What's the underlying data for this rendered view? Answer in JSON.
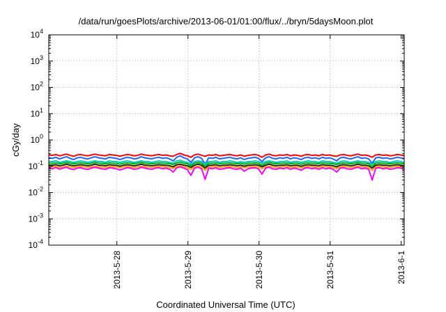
{
  "chart_data": {
    "type": "line",
    "title": "/data/run/goesPlots/archive/2013-06-01/01:00/flux/../bryn/5daysMoon.plot",
    "xlabel": "Coordinated Universal Time (UTC)",
    "ylabel": "cGy/day",
    "y_scale": "log",
    "ylim": [
      0.0001,
      10000
    ],
    "y_ticks": [
      {
        "base": "10",
        "exp": "-4",
        "value": 0.0001
      },
      {
        "base": "10",
        "exp": "-3",
        "value": 0.001
      },
      {
        "base": "10",
        "exp": "-2",
        "value": 0.01
      },
      {
        "base": "10",
        "exp": "-1",
        "value": 0.1
      },
      {
        "base": "10",
        "exp": "0",
        "value": 1
      },
      {
        "base": "10",
        "exp": "1",
        "value": 10
      },
      {
        "base": "10",
        "exp": "2",
        "value": 100
      },
      {
        "base": "10",
        "exp": "3",
        "value": 1000
      },
      {
        "base": "10",
        "exp": "4",
        "value": 10000
      }
    ],
    "xlim": [
      "2013-05-27 01:00",
      "2013-06-01 01:00"
    ],
    "x_ticks": [
      "2013-5-28",
      "2013-5-29",
      "2013-5-30",
      "2013-5-31",
      "2013-6-1"
    ],
    "grid": true,
    "legend": "none",
    "series": [
      {
        "color": "#ff0000",
        "values": [
          0.27,
          0.26,
          0.28,
          0.25,
          0.27,
          0.29,
          0.26,
          0.24,
          0.27,
          0.28,
          0.26,
          0.25,
          0.27,
          0.29,
          0.27,
          0.26,
          0.25,
          0.28,
          0.27,
          0.26,
          0.24,
          0.26,
          0.28,
          0.27,
          0.25,
          0.26,
          0.29,
          0.27,
          0.26,
          0.25,
          0.27,
          0.28,
          0.26,
          0.27,
          0.25,
          0.24,
          0.28,
          0.31,
          0.27,
          0.25,
          0.22,
          0.27,
          0.29,
          0.26,
          0.24,
          0.27,
          0.26,
          0.28,
          0.25,
          0.26,
          0.27,
          0.28,
          0.26,
          0.25,
          0.27,
          0.24,
          0.26,
          0.27,
          0.28,
          0.26,
          0.22,
          0.27,
          0.29,
          0.26,
          0.25,
          0.27,
          0.26,
          0.28,
          0.25,
          0.27,
          0.26,
          0.24,
          0.27,
          0.28,
          0.26,
          0.27,
          0.25,
          0.28,
          0.26,
          0.27,
          0.25,
          0.24,
          0.27,
          0.28,
          0.26,
          0.25,
          0.27,
          0.29,
          0.26,
          0.27,
          0.25,
          0.22,
          0.27,
          0.28,
          0.26,
          0.27,
          0.25,
          0.26,
          0.28,
          0.27,
          0.25
        ]
      },
      {
        "color": "#1e64ff",
        "values": [
          0.21,
          0.2,
          0.22,
          0.19,
          0.21,
          0.23,
          0.2,
          0.18,
          0.21,
          0.22,
          0.2,
          0.19,
          0.21,
          0.23,
          0.21,
          0.2,
          0.19,
          0.22,
          0.21,
          0.2,
          0.18,
          0.2,
          0.22,
          0.21,
          0.19,
          0.2,
          0.23,
          0.21,
          0.2,
          0.19,
          0.21,
          0.22,
          0.2,
          0.21,
          0.19,
          0.16,
          0.22,
          0.25,
          0.21,
          0.19,
          0.14,
          0.21,
          0.23,
          0.2,
          0.12,
          0.21,
          0.2,
          0.22,
          0.19,
          0.2,
          0.21,
          0.22,
          0.2,
          0.19,
          0.21,
          0.18,
          0.2,
          0.21,
          0.22,
          0.2,
          0.15,
          0.21,
          0.23,
          0.2,
          0.19,
          0.21,
          0.2,
          0.22,
          0.19,
          0.21,
          0.2,
          0.18,
          0.21,
          0.22,
          0.2,
          0.21,
          0.19,
          0.22,
          0.2,
          0.21,
          0.19,
          0.16,
          0.21,
          0.22,
          0.2,
          0.19,
          0.21,
          0.23,
          0.2,
          0.21,
          0.19,
          0.13,
          0.21,
          0.22,
          0.2,
          0.21,
          0.19,
          0.2,
          0.22,
          0.21,
          0.19
        ]
      },
      {
        "color": "#00c8c8",
        "values": [
          0.15,
          0.15,
          0.16,
          0.14,
          0.15,
          0.16,
          0.15,
          0.14,
          0.15,
          0.16,
          0.15,
          0.14,
          0.15,
          0.16,
          0.15,
          0.15,
          0.14,
          0.16,
          0.15,
          0.15,
          0.14,
          0.15,
          0.16,
          0.15,
          0.14,
          0.15,
          0.16,
          0.15,
          0.15,
          0.14,
          0.15,
          0.16,
          0.15,
          0.15,
          0.14,
          0.13,
          0.16,
          0.17,
          0.15,
          0.14,
          0.12,
          0.15,
          0.16,
          0.15,
          0.12,
          0.15,
          0.15,
          0.16,
          0.14,
          0.15,
          0.15,
          0.16,
          0.15,
          0.14,
          0.15,
          0.14,
          0.15,
          0.15,
          0.16,
          0.15,
          0.13,
          0.15,
          0.16,
          0.15,
          0.14,
          0.15,
          0.15,
          0.16,
          0.14,
          0.15,
          0.15,
          0.14,
          0.15,
          0.16,
          0.15,
          0.15,
          0.14,
          0.16,
          0.15,
          0.15,
          0.14,
          0.13,
          0.15,
          0.16,
          0.15,
          0.14,
          0.15,
          0.16,
          0.15,
          0.15,
          0.14,
          0.12,
          0.15,
          0.16,
          0.15,
          0.15,
          0.14,
          0.15,
          0.16,
          0.15,
          0.14
        ]
      },
      {
        "color": "#00b400",
        "values": [
          0.13,
          0.13,
          0.135,
          0.125,
          0.13,
          0.14,
          0.13,
          0.125,
          0.13,
          0.135,
          0.13,
          0.125,
          0.13,
          0.14,
          0.13,
          0.13,
          0.125,
          0.135,
          0.13,
          0.13,
          0.12,
          0.13,
          0.135,
          0.13,
          0.125,
          0.13,
          0.14,
          0.13,
          0.13,
          0.125,
          0.13,
          0.135,
          0.13,
          0.13,
          0.125,
          0.115,
          0.135,
          0.145,
          0.13,
          0.125,
          0.105,
          0.13,
          0.14,
          0.13,
          0.1,
          0.13,
          0.13,
          0.135,
          0.125,
          0.13,
          0.13,
          0.135,
          0.13,
          0.125,
          0.13,
          0.12,
          0.13,
          0.13,
          0.135,
          0.13,
          0.11,
          0.13,
          0.14,
          0.13,
          0.125,
          0.13,
          0.13,
          0.135,
          0.125,
          0.13,
          0.13,
          0.12,
          0.13,
          0.135,
          0.13,
          0.13,
          0.125,
          0.135,
          0.13,
          0.13,
          0.125,
          0.115,
          0.13,
          0.135,
          0.13,
          0.125,
          0.13,
          0.14,
          0.13,
          0.13,
          0.125,
          0.1,
          0.13,
          0.135,
          0.13,
          0.13,
          0.125,
          0.13,
          0.135,
          0.13,
          0.125
        ]
      },
      {
        "color": "#222222",
        "values": [
          0.11,
          0.11,
          0.115,
          0.105,
          0.11,
          0.12,
          0.11,
          0.105,
          0.11,
          0.115,
          0.11,
          0.105,
          0.11,
          0.12,
          0.11,
          0.11,
          0.105,
          0.115,
          0.11,
          0.11,
          0.1,
          0.11,
          0.115,
          0.11,
          0.105,
          0.11,
          0.12,
          0.11,
          0.11,
          0.105,
          0.11,
          0.115,
          0.11,
          0.11,
          0.105,
          0.095,
          0.115,
          0.12,
          0.11,
          0.105,
          0.09,
          0.11,
          0.12,
          0.11,
          0.085,
          0.11,
          0.11,
          0.115,
          0.105,
          0.11,
          0.11,
          0.115,
          0.11,
          0.105,
          0.11,
          0.1,
          0.11,
          0.11,
          0.115,
          0.11,
          0.095,
          0.11,
          0.12,
          0.11,
          0.105,
          0.11,
          0.11,
          0.115,
          0.105,
          0.11,
          0.11,
          0.1,
          0.11,
          0.115,
          0.11,
          0.11,
          0.105,
          0.115,
          0.11,
          0.11,
          0.105,
          0.095,
          0.11,
          0.115,
          0.11,
          0.105,
          0.11,
          0.12,
          0.11,
          0.11,
          0.105,
          0.085,
          0.11,
          0.115,
          0.11,
          0.11,
          0.105,
          0.11,
          0.115,
          0.11,
          0.105
        ]
      },
      {
        "color": "#ffa500",
        "values": [
          0.095,
          0.095,
          0.1,
          0.09,
          0.095,
          0.1,
          0.095,
          0.09,
          0.095,
          0.1,
          0.095,
          0.09,
          0.095,
          0.1,
          0.095,
          0.095,
          0.09,
          0.1,
          0.095,
          0.095,
          0.088,
          0.095,
          0.1,
          0.095,
          0.09,
          0.095,
          0.1,
          0.095,
          0.095,
          0.09,
          0.095,
          0.1,
          0.095,
          0.095,
          0.09,
          0.082,
          0.1,
          0.105,
          0.095,
          0.09,
          0.075,
          0.095,
          0.1,
          0.095,
          0.07,
          0.095,
          0.095,
          0.1,
          0.09,
          0.095,
          0.095,
          0.1,
          0.095,
          0.09,
          0.095,
          0.088,
          0.095,
          0.095,
          0.1,
          0.095,
          0.08,
          0.095,
          0.1,
          0.095,
          0.09,
          0.095,
          0.095,
          0.1,
          0.09,
          0.095,
          0.095,
          0.088,
          0.095,
          0.1,
          0.095,
          0.095,
          0.09,
          0.1,
          0.095,
          0.095,
          0.09,
          0.082,
          0.095,
          0.1,
          0.095,
          0.09,
          0.095,
          0.1,
          0.095,
          0.095,
          0.09,
          0.07,
          0.095,
          0.1,
          0.095,
          0.095,
          0.09,
          0.095,
          0.1,
          0.095,
          0.09
        ]
      },
      {
        "color": "#ff00ff",
        "values": [
          0.085,
          0.08,
          0.09,
          0.078,
          0.085,
          0.092,
          0.08,
          0.075,
          0.085,
          0.088,
          0.08,
          0.076,
          0.085,
          0.092,
          0.085,
          0.08,
          0.077,
          0.088,
          0.085,
          0.08,
          0.072,
          0.08,
          0.088,
          0.085,
          0.077,
          0.08,
          0.092,
          0.085,
          0.08,
          0.077,
          0.085,
          0.088,
          0.08,
          0.085,
          0.077,
          0.06,
          0.088,
          0.095,
          0.085,
          0.075,
          0.045,
          0.085,
          0.092,
          0.08,
          0.032,
          0.085,
          0.08,
          0.088,
          0.077,
          0.08,
          0.085,
          0.088,
          0.08,
          0.077,
          0.085,
          0.065,
          0.08,
          0.085,
          0.088,
          0.08,
          0.05,
          0.085,
          0.092,
          0.08,
          0.077,
          0.085,
          0.08,
          0.088,
          0.077,
          0.085,
          0.08,
          0.07,
          0.085,
          0.088,
          0.08,
          0.085,
          0.077,
          0.088,
          0.08,
          0.085,
          0.077,
          0.06,
          0.085,
          0.088,
          0.08,
          0.077,
          0.085,
          0.092,
          0.08,
          0.085,
          0.077,
          0.03,
          0.085,
          0.088,
          0.08,
          0.085,
          0.077,
          0.08,
          0.088,
          0.085,
          0.077
        ]
      }
    ]
  }
}
